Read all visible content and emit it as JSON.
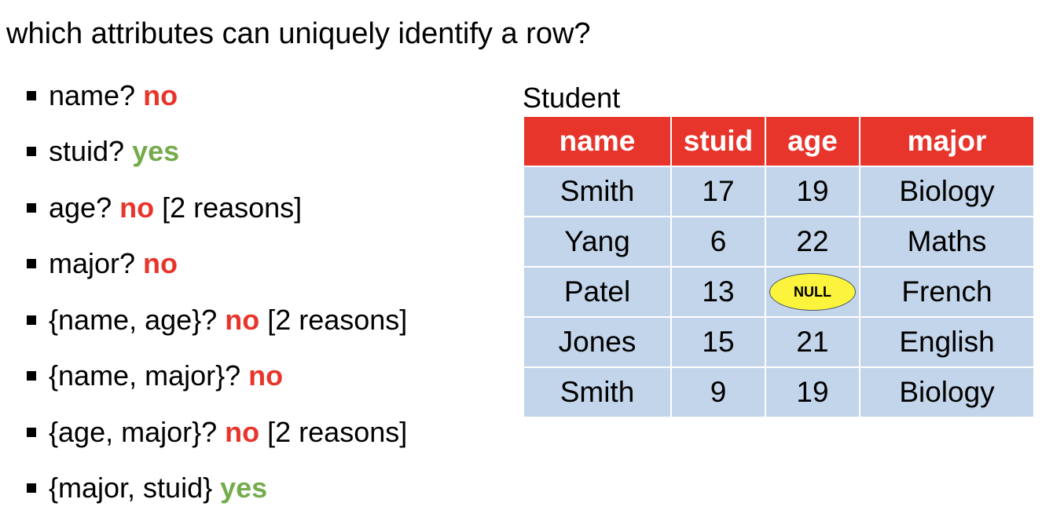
{
  "question": "which attributes can uniquely identify a row?",
  "bullets": [
    {
      "text": "name?",
      "answer": "no",
      "answer_color": "#e8352c",
      "note": ""
    },
    {
      "text": "stuid?",
      "answer": "yes",
      "answer_color": "#74ac4c",
      "note": ""
    },
    {
      "text": "age?",
      "answer": "no",
      "answer_color": "#e8352c",
      "note": "[2 reasons]"
    },
    {
      "text": "major?",
      "answer": "no",
      "answer_color": "#e8352c",
      "note": ""
    },
    {
      "text": "{name, age}?",
      "answer": "no",
      "answer_color": "#e8352c",
      "note": "[2 reasons]"
    },
    {
      "text": "{name, major}?",
      "answer": "no",
      "answer_color": "#e8352c",
      "note": ""
    },
    {
      "text": "{age, major}?",
      "answer": "no",
      "answer_color": "#e8352c",
      "note": "[2 reasons]"
    },
    {
      "text": "{major, stuid}",
      "answer": "yes",
      "answer_color": "#74ac4c",
      "note": ""
    }
  ],
  "table": {
    "title": "Student",
    "header_color": "#e8352c",
    "cell_color": "#c3d5ea",
    "columns": [
      "name",
      "stuid",
      "age",
      "major"
    ],
    "rows": [
      [
        "Smith",
        "17",
        "19",
        "Biology"
      ],
      [
        "Yang",
        "6",
        "22",
        "Maths"
      ],
      [
        "Patel",
        "13",
        "NULL",
        "French"
      ],
      [
        "Jones",
        "15",
        "21",
        "English"
      ],
      [
        "Smith",
        "9",
        "19",
        "Biology"
      ]
    ],
    "null_badge_color": "#fcf43c"
  }
}
